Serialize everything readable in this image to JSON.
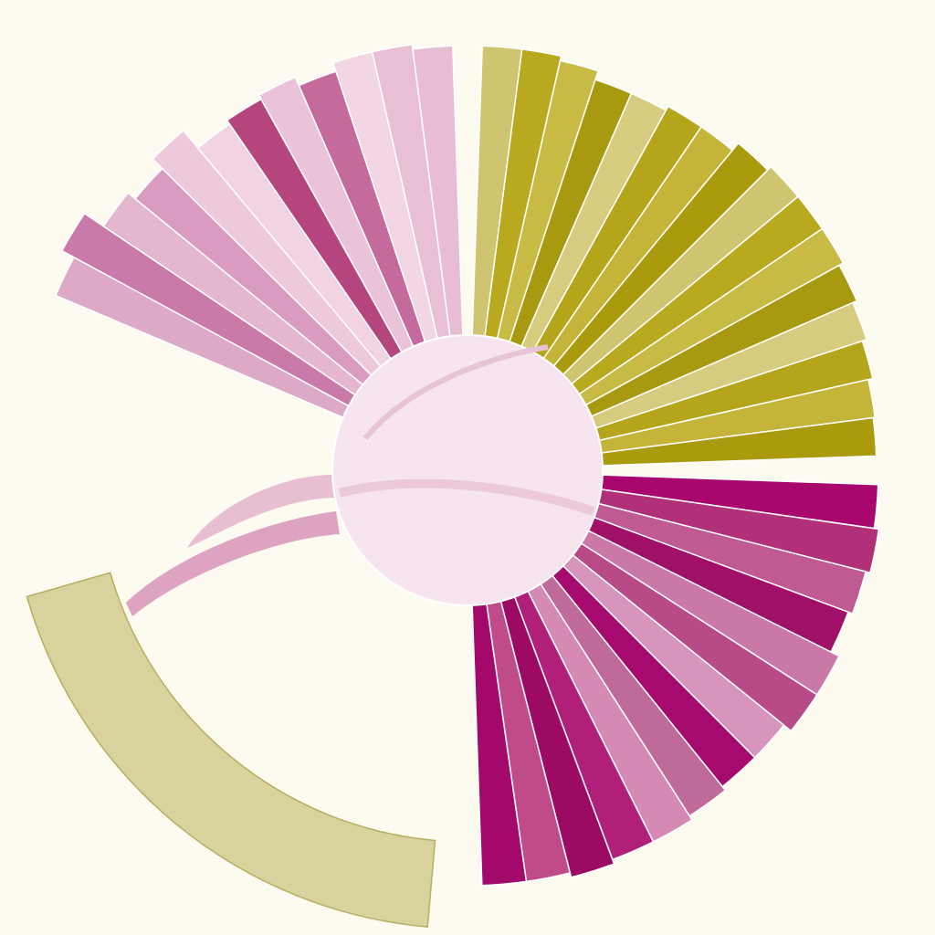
{
  "chart_data": {
    "type": "radial-bar",
    "series": [
      {
        "color": "#dca9c6",
        "start_angle": -67,
        "end_angle": -2,
        "values": [
          490,
          505,
          480,
          470,
          485,
          460,
          465,
          470,
          460,
          470,
          470,
          465
        ],
        "colors": [
          "#dca9c6",
          "#c97aa8",
          "#e5b7cf",
          "#d99bbf",
          "#eec9dc",
          "#f1d3e2",
          "#b5457f",
          "#ebc3d8",
          "#c46a9d",
          "#f2d6e4",
          "#e9bfd6",
          "#e8bcd3"
        ]
      },
      {
        "color": "#b8a91e",
        "start_angle": 2,
        "end_angle": 88,
        "values": [
          465,
          465,
          460,
          450,
          450,
          455,
          455,
          465,
          470,
          470,
          470,
          465,
          460,
          455,
          450,
          448
        ],
        "colors": [
          "#cfc470",
          "#b8a91e",
          "#c7ba45",
          "#a89a10",
          "#d6cb7e",
          "#b5a51a",
          "#c4b53a",
          "#aa9b0e",
          "#cfc470",
          "#b8a91e",
          "#c7ba45",
          "#a89a10",
          "#d6cb7e",
          "#b5a51a",
          "#c4b53a",
          "#aa9b0e"
        ]
      },
      {
        "color": "#a8086e",
        "start_angle": 92,
        "end_angle": 178,
        "values": [
          450,
          455,
          450,
          445,
          455,
          455,
          445,
          445,
          450,
          455,
          455,
          460,
          455,
          455
        ],
        "colors": [
          "#a8086e",
          "#b0307a",
          "#bf5a92",
          "#a01068",
          "#c978a8",
          "#b84a88",
          "#d895bb",
          "#a60a6c",
          "#c06a9a",
          "#d48ab3",
          "#b0207a",
          "#9c0a64",
          "#c04b8b",
          "#a3086b"
        ]
      }
    ]
  }
}
